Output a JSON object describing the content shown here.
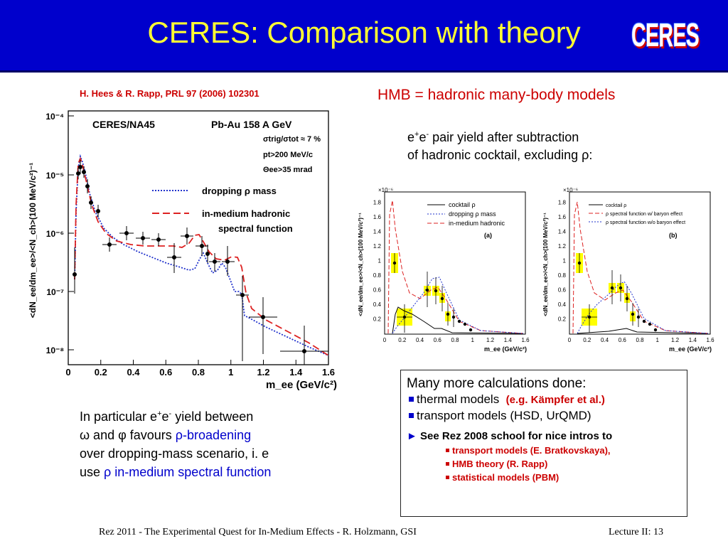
{
  "header": {
    "title": "CERES:  Comparison with theory",
    "logo": "CERES"
  },
  "reference": "H. Hees & R. Rapp, PRL 97 (2006) 102301",
  "hmb_note": "HMB = hadronic many-body models",
  "pair_text": {
    "line1_a": "e",
    "line1_sup1": "+",
    "line1_b": "e",
    "line1_sup2": "-",
    "line1_c": " pair yield after subtraction",
    "line2": "of hadronic cocktail, excluding ρ:"
  },
  "main_plot": {
    "ytitle": "<dN_ee/dm_ee>/<N_ch>(100 MeV/c²)⁻¹",
    "xtitle": "m_ee (GeV/c²)",
    "x_ticks": [
      "0",
      "0.2",
      "0.4",
      "0.6",
      "0.8",
      "1",
      "1.2",
      "1.4",
      "1.6"
    ],
    "y_ticks": [
      "10⁻⁴",
      "10⁻⁵",
      "10⁻⁶",
      "10⁻⁷",
      "10⁻⁸"
    ],
    "experiment": "CERES/NA45",
    "system": "Pb-Au 158 A GeV",
    "cut1": "σtrig/σtot ≈ 7 %",
    "cut2": "pt>200 MeV/c",
    "cut3": "Θee>35 mrad",
    "legend_dropping": "dropping ρ mass",
    "legend_inmedium_1": "in-medium hadronic",
    "legend_inmedium_2": "spectral function"
  },
  "small_plot_a": {
    "label": "(a)",
    "legend": [
      "cocktail ρ",
      "dropping ρ mass",
      "in-medium hadronic"
    ],
    "ytitle": "<dN_ee/dm_ee>/<N_ch>(100 MeV/c²)⁻¹",
    "xtitle": "m_ee (GeV/c²)",
    "exp": "×10⁻⁶",
    "x_ticks": [
      "0",
      "0.2",
      "0.4",
      "0.6",
      "0.8",
      "1",
      "1.2",
      "1.4",
      "1.6"
    ],
    "y_ticks": [
      "0.2",
      "0.4",
      "0.6",
      "0.8",
      "1",
      "1.2",
      "1.4",
      "1.6",
      "1.8"
    ]
  },
  "small_plot_b": {
    "label": "(b)",
    "legend": [
      "cocktail ρ",
      "ρ spectral function w/ baryon effect",
      "ρ spectral function w/o baryon effect"
    ],
    "ytitle": "<dN_ee/dm_ee>/<N_ch>(100 MeV/c²)⁻¹",
    "xtitle": "m_ee (GeV/c²)",
    "exp": "×10⁻⁶",
    "x_ticks": [
      "0",
      "0.2",
      "0.4",
      "0.6",
      "0.8",
      "1",
      "1.2",
      "1.4",
      "1.6"
    ],
    "y_ticks": [
      "0.2",
      "0.4",
      "0.6",
      "0.8",
      "1",
      "1.2",
      "1.4",
      "1.6",
      "1.8"
    ]
  },
  "conclusion": {
    "l1_a": "In particular e",
    "l1_sup1": "+",
    "l1_b": "e",
    "l1_sup2": "-",
    "l1_c": " yield between",
    "l2_a": "ω and φ favours ",
    "l2_b": "ρ-broadening",
    "l3": "over dropping-mass scenario, i. e",
    "l4_a": "use ",
    "l4_b": "ρ in-medium spectral function"
  },
  "calc_box": {
    "title": "Many more calculations done:",
    "item1": "thermal models",
    "item1_ref": "(e.g. Kämpfer et al.)",
    "item2": "transport models (HSD, UrQMD)",
    "see_arrow": "►",
    "see": "See Rez 2008 school for nice intros to",
    "sub1": "transport models  (E. Bratkovskaya),",
    "sub2": "HMB theory  (R. Rapp)",
    "sub3": "statistical models  (PBM)"
  },
  "footer": {
    "left": "Rez 2011   -   The Experimental Quest for In-Medium Effects   -   R. Holzmann, GSI",
    "right": "Lecture II:    13"
  }
}
